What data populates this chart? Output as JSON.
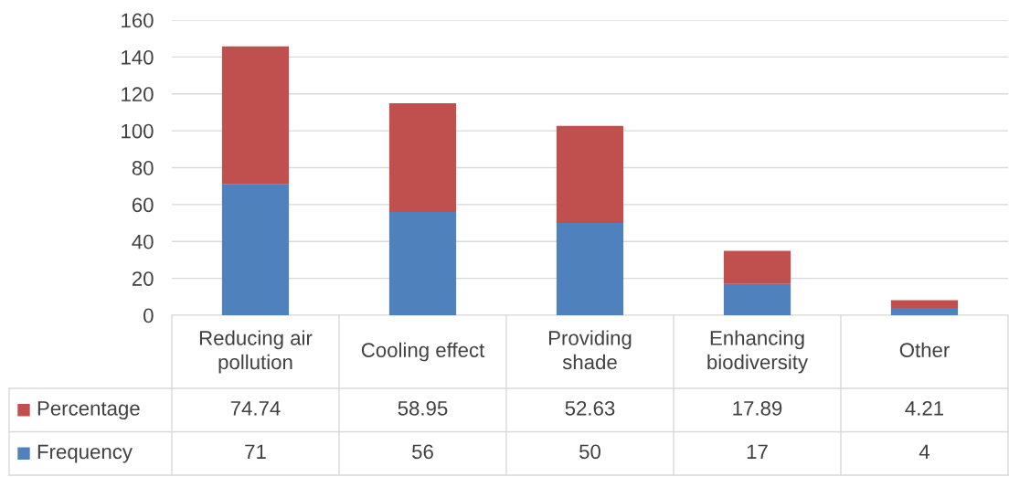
{
  "chart_data": {
    "type": "bar",
    "stacked": true,
    "categories": [
      "Reducing air pollution",
      "Cooling effect",
      "Providing shade",
      "Enhancing biodiversity",
      "Other"
    ],
    "series": [
      {
        "name": "Frequency",
        "color": "#4f81bd",
        "values": [
          71,
          56,
          50,
          17,
          4
        ]
      },
      {
        "name": "Percentage",
        "color": "#c0504d",
        "values": [
          74.74,
          58.95,
          52.63,
          17.89,
          4.21
        ]
      }
    ],
    "ylim": [
      0,
      160
    ],
    "yticks": [
      0,
      20,
      40,
      60,
      80,
      100,
      120,
      140,
      160
    ],
    "grid": "y",
    "data_labels": true,
    "legend": "bottom"
  }
}
